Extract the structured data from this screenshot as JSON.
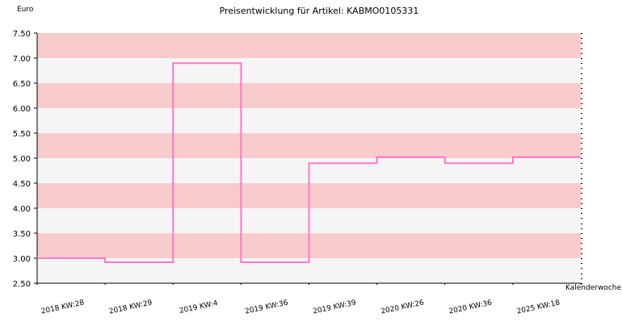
{
  "chart_data": {
    "type": "line",
    "step": true,
    "title": "Preisentwicklung für Artikel: KABMO0105331",
    "ylabel": "Euro",
    "xlabel": "Kalenderwoche",
    "ylim": [
      2.5,
      7.5
    ],
    "yticks": [
      "2.50",
      "3.00",
      "3.50",
      "4.00",
      "4.50",
      "5.00",
      "5.50",
      "6.00",
      "6.50",
      "7.00",
      "7.50"
    ],
    "categories": [
      "2018 KW:28",
      "2018 KW:29",
      "2019 KW:4",
      "2019 KW:36",
      "2019 KW:39",
      "2020 KW:26",
      "2020 KW:36",
      "2025 KW:18"
    ],
    "series": [
      {
        "values": [
          3.0,
          2.92,
          6.9,
          2.92,
          4.9,
          5.02,
          4.9,
          5.02
        ]
      }
    ],
    "colors": {
      "line": "#ff77c8",
      "band_dark": "#f8cccc",
      "band_light": "#f5f5f5",
      "axis": "#000000",
      "text": "#000000"
    },
    "grid": false,
    "legend": "none"
  }
}
